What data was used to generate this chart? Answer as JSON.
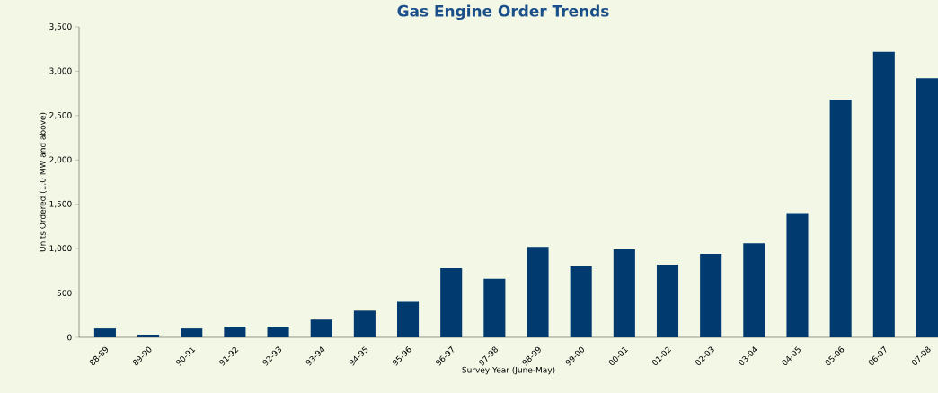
{
  "chart_data": {
    "type": "bar",
    "title": "Gas Engine Order Trends",
    "xlabel": "Survey Year (June-May)",
    "ylabel": "Units Ordered (1.0 MW and above)",
    "categories": [
      "88-89",
      "89-90",
      "90-91",
      "91-92",
      "92-93",
      "93-94",
      "94-95",
      "95-96",
      "96-97",
      "97-98",
      "98-99",
      "99-00",
      "00-01",
      "01-02",
      "02-03",
      "03-04",
      "04-05",
      "05-06",
      "06-07",
      "07-08"
    ],
    "values": [
      100,
      30,
      100,
      120,
      120,
      200,
      300,
      400,
      780,
      660,
      1020,
      800,
      990,
      820,
      940,
      1060,
      1400,
      2680,
      3220,
      2920
    ],
    "color": "#003a6e",
    "ylim": [
      0,
      3500
    ],
    "yticks": [
      0,
      500,
      {
        "value": 1000,
        "label": "1,000"
      },
      {
        "value": 1500,
        "label": "1,500"
      },
      {
        "value": 2000,
        "label": "2,000"
      },
      {
        "value": 2500,
        "label": "2,500"
      },
      {
        "value": 3000,
        "label": "3,000"
      },
      {
        "value": 3500,
        "label": "3,500"
      }
    ],
    "grid": false
  }
}
